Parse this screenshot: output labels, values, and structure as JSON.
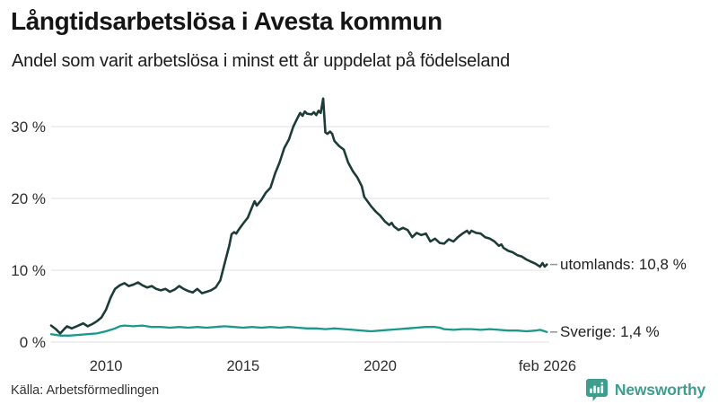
{
  "header": {
    "title": "Långtidsarbetslösa i Avesta kommun",
    "subtitle": "Andel som varit arbetslösa i minst ett år uppdelat på födelseland"
  },
  "footer": {
    "source": "Källa: Arbetsförmedlingen",
    "brand": "Newsworthy"
  },
  "colors": {
    "utomlands_line": "#1d3c38",
    "sverige_line": "#18998b",
    "grid": "#e2e2e6",
    "brand_teal": "#3f9d8f",
    "label_connector": "#999999",
    "text_dark": "#151515",
    "axis_text": "#2e2e2e"
  },
  "chart_data": {
    "type": "line",
    "title": "Långtidsarbetslösa i Avesta kommun",
    "subtitle": "Andel som varit arbetslösa i minst ett år uppdelat på födelseland",
    "unit": "%",
    "grid": "horizontal",
    "legend_position": "line-end-labels",
    "x_range": [
      2008.0,
      2026.3
    ],
    "ylim": [
      0,
      34.5
    ],
    "y_axis": {
      "tick_values": [
        0,
        10,
        20,
        30
      ],
      "tick_labels": [
        "0 %",
        "10 %",
        "20 %",
        "30 %"
      ]
    },
    "x_axis": {
      "ticks": [
        {
          "label": "2010",
          "t": 2010.0
        },
        {
          "label": "2015",
          "t": 2015.0
        },
        {
          "label": "2020",
          "t": 2020.0
        },
        {
          "label": "feb 2026",
          "t": 2026.1
        }
      ]
    },
    "series": [
      {
        "name": "utomlands",
        "color": "#1d3c38",
        "stroke_width": 2.6,
        "end_label": "utomlands: 10,8 %",
        "end_value": 10.8,
        "points": [
          [
            2008.0,
            2.3
          ],
          [
            2008.17,
            1.8
          ],
          [
            2008.33,
            1.2
          ],
          [
            2008.5,
            1.9
          ],
          [
            2008.58,
            2.2
          ],
          [
            2008.75,
            1.9
          ],
          [
            2009.0,
            2.3
          ],
          [
            2009.17,
            2.6
          ],
          [
            2009.33,
            2.2
          ],
          [
            2009.5,
            2.5
          ],
          [
            2009.67,
            2.9
          ],
          [
            2009.83,
            3.4
          ],
          [
            2010.0,
            4.5
          ],
          [
            2010.17,
            6.2
          ],
          [
            2010.33,
            7.4
          ],
          [
            2010.5,
            7.9
          ],
          [
            2010.67,
            8.2
          ],
          [
            2010.83,
            7.8
          ],
          [
            2011.0,
            8.0
          ],
          [
            2011.17,
            8.3
          ],
          [
            2011.33,
            7.9
          ],
          [
            2011.5,
            7.6
          ],
          [
            2011.67,
            7.8
          ],
          [
            2011.83,
            7.4
          ],
          [
            2012.0,
            7.2
          ],
          [
            2012.17,
            7.4
          ],
          [
            2012.33,
            7.0
          ],
          [
            2012.5,
            7.3
          ],
          [
            2012.67,
            7.8
          ],
          [
            2012.83,
            7.4
          ],
          [
            2013.0,
            7.1
          ],
          [
            2013.17,
            6.9
          ],
          [
            2013.33,
            7.4
          ],
          [
            2013.5,
            6.8
          ],
          [
            2013.67,
            7.0
          ],
          [
            2013.83,
            7.2
          ],
          [
            2014.0,
            7.6
          ],
          [
            2014.17,
            8.6
          ],
          [
            2014.33,
            11.0
          ],
          [
            2014.5,
            13.5
          ],
          [
            2014.58,
            15.0
          ],
          [
            2014.67,
            15.3
          ],
          [
            2014.75,
            15.1
          ],
          [
            2014.83,
            15.6
          ],
          [
            2015.0,
            16.5
          ],
          [
            2015.17,
            17.3
          ],
          [
            2015.33,
            18.8
          ],
          [
            2015.42,
            19.6
          ],
          [
            2015.5,
            19.0
          ],
          [
            2015.67,
            19.8
          ],
          [
            2015.83,
            20.8
          ],
          [
            2016.0,
            21.5
          ],
          [
            2016.17,
            23.5
          ],
          [
            2016.33,
            25.0
          ],
          [
            2016.5,
            27.0
          ],
          [
            2016.67,
            28.2
          ],
          [
            2016.83,
            30.0
          ],
          [
            2017.0,
            31.3
          ],
          [
            2017.08,
            31.9
          ],
          [
            2017.17,
            31.5
          ],
          [
            2017.25,
            32.1
          ],
          [
            2017.33,
            31.8
          ],
          [
            2017.5,
            31.7
          ],
          [
            2017.58,
            32.0
          ],
          [
            2017.67,
            31.6
          ],
          [
            2017.75,
            32.2
          ],
          [
            2017.83,
            31.9
          ],
          [
            2017.92,
            33.9
          ],
          [
            2018.0,
            29.2
          ],
          [
            2018.08,
            29.0
          ],
          [
            2018.17,
            29.3
          ],
          [
            2018.25,
            29.0
          ],
          [
            2018.33,
            28.0
          ],
          [
            2018.5,
            27.3
          ],
          [
            2018.67,
            26.8
          ],
          [
            2018.83,
            25.0
          ],
          [
            2019.0,
            23.8
          ],
          [
            2019.17,
            22.9
          ],
          [
            2019.33,
            21.7
          ],
          [
            2019.42,
            20.2
          ],
          [
            2019.5,
            19.8
          ],
          [
            2019.67,
            18.9
          ],
          [
            2019.83,
            18.2
          ],
          [
            2020.0,
            17.6
          ],
          [
            2020.17,
            16.8
          ],
          [
            2020.33,
            16.3
          ],
          [
            2020.42,
            16.6
          ],
          [
            2020.5,
            16.1
          ],
          [
            2020.67,
            15.6
          ],
          [
            2020.83,
            15.9
          ],
          [
            2021.0,
            15.6
          ],
          [
            2021.17,
            14.6
          ],
          [
            2021.33,
            15.2
          ],
          [
            2021.5,
            14.9
          ],
          [
            2021.67,
            15.1
          ],
          [
            2021.83,
            14.0
          ],
          [
            2022.0,
            14.4
          ],
          [
            2022.17,
            13.8
          ],
          [
            2022.33,
            13.7
          ],
          [
            2022.5,
            14.3
          ],
          [
            2022.67,
            14.0
          ],
          [
            2022.83,
            14.6
          ],
          [
            2023.0,
            15.1
          ],
          [
            2023.17,
            15.5
          ],
          [
            2023.25,
            15.1
          ],
          [
            2023.33,
            15.5
          ],
          [
            2023.5,
            15.2
          ],
          [
            2023.67,
            15.1
          ],
          [
            2023.83,
            14.6
          ],
          [
            2024.0,
            14.4
          ],
          [
            2024.17,
            14.0
          ],
          [
            2024.33,
            13.4
          ],
          [
            2024.42,
            13.6
          ],
          [
            2024.5,
            13.1
          ],
          [
            2024.67,
            12.7
          ],
          [
            2024.83,
            12.5
          ],
          [
            2025.0,
            12.1
          ],
          [
            2025.17,
            11.9
          ],
          [
            2025.33,
            11.5
          ],
          [
            2025.5,
            11.2
          ],
          [
            2025.67,
            10.9
          ],
          [
            2025.83,
            10.5
          ],
          [
            2025.92,
            11.0
          ],
          [
            2026.0,
            10.5
          ],
          [
            2026.08,
            10.8
          ]
        ]
      },
      {
        "name": "Sverige",
        "color": "#18998b",
        "stroke_width": 2.3,
        "end_label": "Sverige:  1,4 %",
        "end_value": 1.4,
        "points": [
          [
            2008.0,
            1.1
          ],
          [
            2008.33,
            0.9
          ],
          [
            2008.67,
            0.9
          ],
          [
            2009.0,
            1.0
          ],
          [
            2009.33,
            1.1
          ],
          [
            2009.67,
            1.2
          ],
          [
            2010.0,
            1.5
          ],
          [
            2010.33,
            1.9
          ],
          [
            2010.5,
            2.2
          ],
          [
            2010.67,
            2.3
          ],
          [
            2011.0,
            2.2
          ],
          [
            2011.33,
            2.3
          ],
          [
            2011.67,
            2.1
          ],
          [
            2012.0,
            2.1
          ],
          [
            2012.33,
            2.0
          ],
          [
            2012.67,
            2.1
          ],
          [
            2013.0,
            2.0
          ],
          [
            2013.33,
            2.1
          ],
          [
            2013.67,
            2.0
          ],
          [
            2014.0,
            2.1
          ],
          [
            2014.33,
            2.2
          ],
          [
            2014.67,
            2.1
          ],
          [
            2015.0,
            2.0
          ],
          [
            2015.33,
            2.1
          ],
          [
            2015.67,
            2.0
          ],
          [
            2016.0,
            2.1
          ],
          [
            2016.33,
            2.0
          ],
          [
            2016.67,
            2.1
          ],
          [
            2017.0,
            2.0
          ],
          [
            2017.33,
            1.9
          ],
          [
            2017.67,
            1.9
          ],
          [
            2018.0,
            1.8
          ],
          [
            2018.33,
            1.9
          ],
          [
            2018.67,
            1.8
          ],
          [
            2019.0,
            1.7
          ],
          [
            2019.33,
            1.6
          ],
          [
            2019.67,
            1.5
          ],
          [
            2020.0,
            1.6
          ],
          [
            2020.33,
            1.7
          ],
          [
            2020.67,
            1.8
          ],
          [
            2021.0,
            1.9
          ],
          [
            2021.33,
            2.0
          ],
          [
            2021.67,
            2.1
          ],
          [
            2022.0,
            2.1
          ],
          [
            2022.17,
            2.0
          ],
          [
            2022.33,
            1.8
          ],
          [
            2022.67,
            1.7
          ],
          [
            2023.0,
            1.8
          ],
          [
            2023.33,
            1.8
          ],
          [
            2023.67,
            1.7
          ],
          [
            2024.0,
            1.8
          ],
          [
            2024.33,
            1.7
          ],
          [
            2024.67,
            1.6
          ],
          [
            2025.0,
            1.6
          ],
          [
            2025.33,
            1.5
          ],
          [
            2025.67,
            1.6
          ],
          [
            2025.83,
            1.7
          ],
          [
            2026.0,
            1.5
          ],
          [
            2026.08,
            1.4
          ]
        ]
      }
    ]
  }
}
